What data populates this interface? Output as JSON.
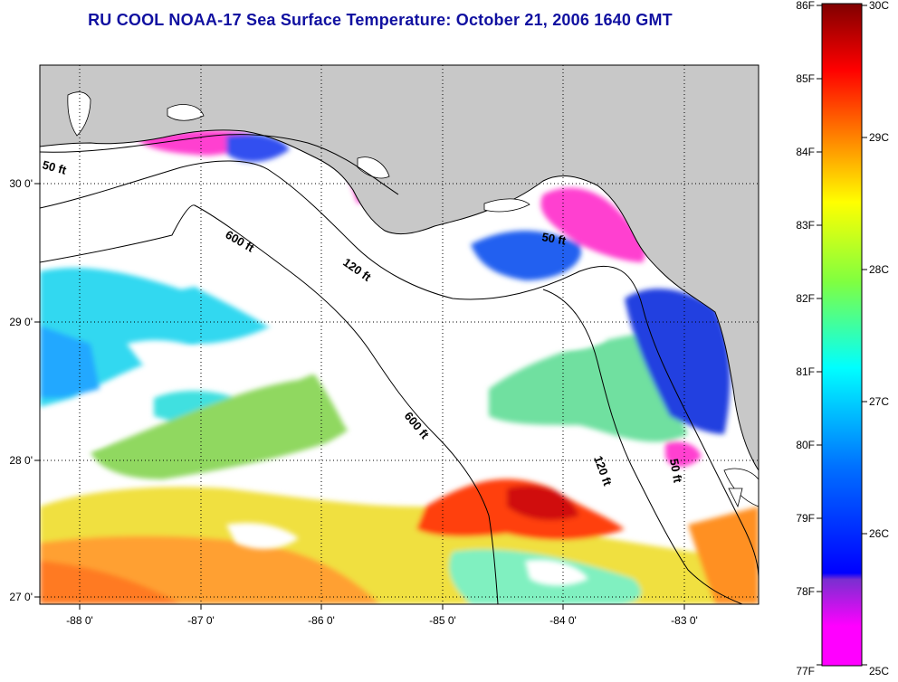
{
  "title": "RU COOL  NOAA-17  Sea Surface Temperature:  October 21, 2006 1640 GMT",
  "x_ticks": [
    "-88 0'",
    "-87 0'",
    "-86 0'",
    "-85 0'",
    "-84 0'",
    "-83 0'"
  ],
  "y_ticks": [
    "30 0'",
    "29 0'",
    "28 0'",
    "27 0'"
  ],
  "contour_labels": {
    "c50a": "50 ft",
    "c600a": "600 ft",
    "c120a": "120 ft",
    "c50b": "50 ft",
    "c600b": "600 ft",
    "c120b": "120 ft",
    "c50c": "50 ft"
  },
  "colorbar": {
    "fahrenheit": [
      "86F",
      "85F",
      "84F",
      "83F",
      "82F",
      "81F",
      "80F",
      "79F",
      "78F",
      "77F"
    ],
    "celsius": [
      "30C",
      "29C",
      "28C",
      "27C",
      "26C",
      "25C"
    ],
    "colors": [
      "#800000",
      "#ff0000",
      "#ff8000",
      "#ffff00",
      "#80ff00",
      "#00ffff",
      "#0080ff",
      "#0000ff",
      "#8000ff",
      "#ff00ff"
    ]
  },
  "colors": {
    "title": "#1010a0",
    "land": "#c8c8c8",
    "water_no_data": "#ffffff"
  }
}
